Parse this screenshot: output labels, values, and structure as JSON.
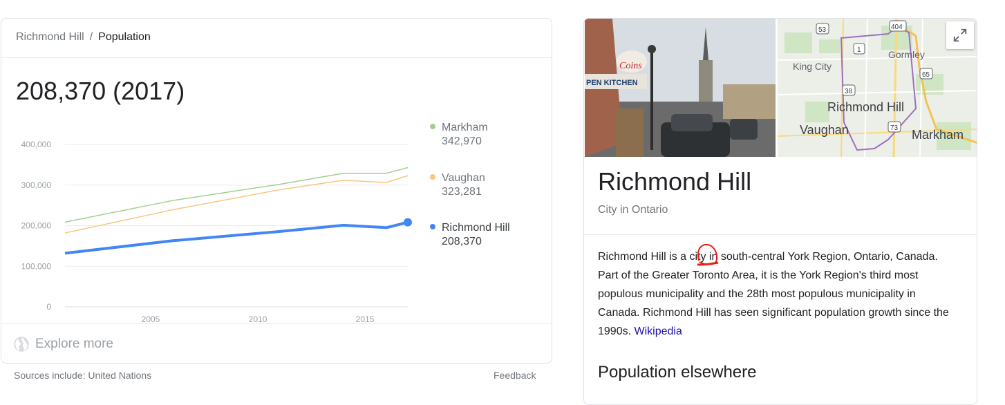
{
  "population_card": {
    "breadcrumb": {
      "parent": "Richmond Hill",
      "separator": "/",
      "current": "Population"
    },
    "headline_value": "208,370 (2017)",
    "legend": [
      {
        "name": "Markham",
        "value": "342,970",
        "color": "#a1cf8f"
      },
      {
        "name": "Vaughan",
        "value": "323,281",
        "color": "#f9c57f"
      },
      {
        "name": "Richmond Hill",
        "value": "208,370",
        "color": "#4285f4"
      }
    ],
    "explore_more_label": "Explore more",
    "explore_icon": "globe-icon",
    "sources_text": "Sources include: United Nations",
    "feedback_label": "Feedback"
  },
  "chart_data": {
    "type": "line",
    "x": [
      2001,
      2006,
      2011,
      2014,
      2016,
      2017
    ],
    "series": [
      {
        "name": "Markham",
        "color": "#a1cf8f",
        "values": [
          208615,
          261573,
          301709,
          328966,
          328966,
          342970
        ]
      },
      {
        "name": "Vaughan",
        "color": "#f9c57f",
        "values": [
          182022,
          238866,
          288301,
          311838,
          306233,
          323281
        ]
      },
      {
        "name": "Richmond Hill",
        "color": "#4285f4",
        "values": [
          132030,
          162704,
          185541,
          201000,
          195022,
          208370
        ]
      }
    ],
    "y_ticks": [
      "400,000",
      "300,000",
      "200,000",
      "100,000",
      "0"
    ],
    "y_tick_values": [
      400000,
      300000,
      200000,
      100000,
      0
    ],
    "x_ticks": [
      "2005",
      "2010",
      "2015"
    ],
    "x_tick_values": [
      2005,
      2010,
      2015
    ],
    "xlim": [
      2001,
      2017
    ],
    "ylim": [
      0,
      400000
    ],
    "highlighted_series": "Richmond Hill",
    "grid": true,
    "legend_position": "right"
  },
  "knowledge_panel": {
    "map_labels": {
      "king_city": "King City",
      "gormley": "Gormley",
      "richmond_hill": "Richmond Hill",
      "vaughan": "Vaughan",
      "markham": "Markham"
    },
    "map_shields": [
      "53",
      "404",
      "1",
      "65",
      "38",
      "73"
    ],
    "expand_icon": "expand-icon",
    "title": "Richmond Hill",
    "subtitle": "City in Ontario",
    "description_text": "Richmond Hill is a city in south-central York Region, Ontario, Canada. Part of the Greater Toronto Area, it is the York Region's third most populous municipality and the 28th most populous municipality in Canada. Richmond Hill has seen significant population growth since the 1990s.",
    "description_link": "Wikipedia",
    "section_heading": "Population elsewhere",
    "photo_sign_text": "Coins",
    "photo_banner_text": "PEN KITCHEN"
  }
}
